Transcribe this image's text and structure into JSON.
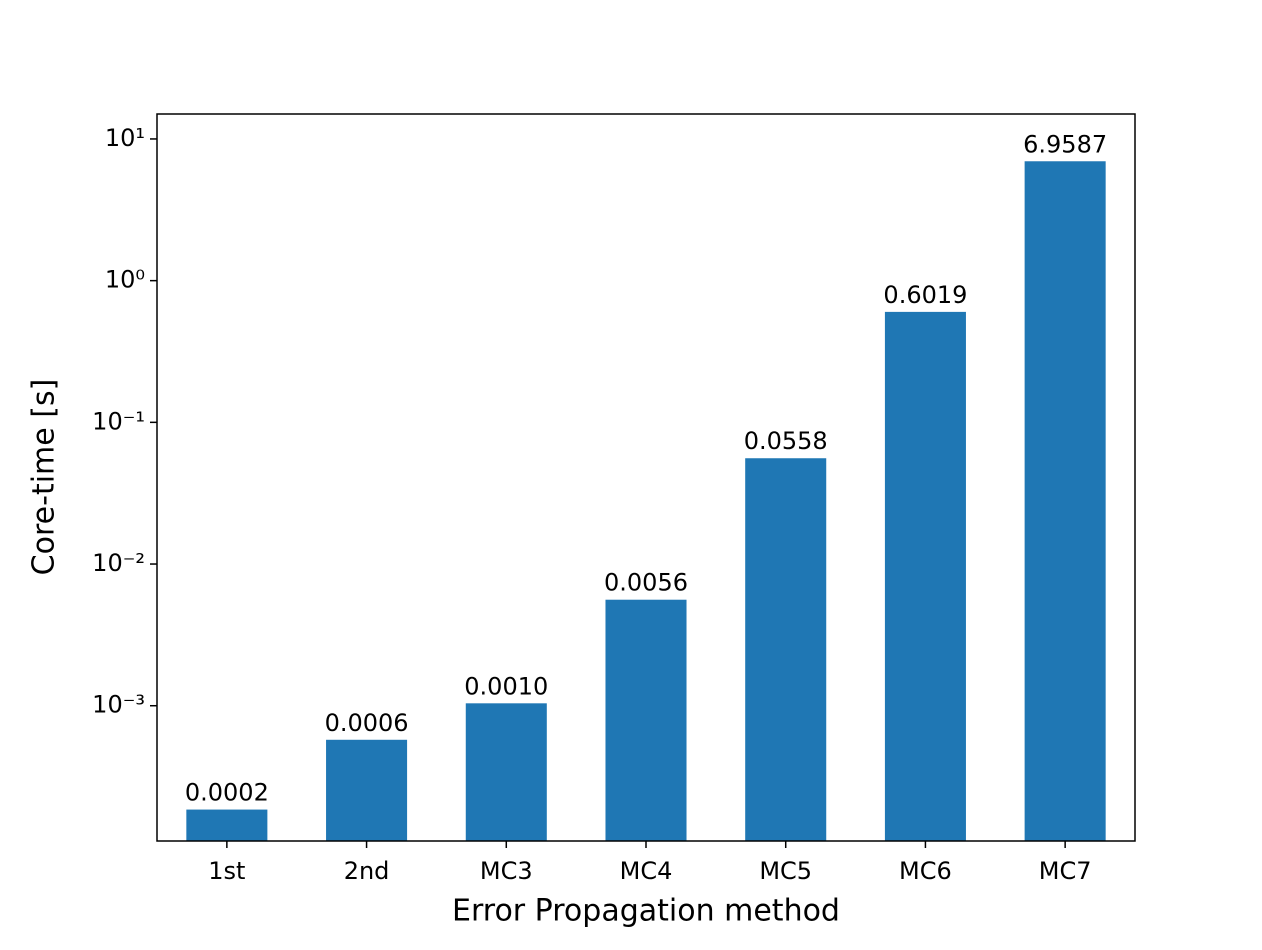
{
  "chart_data": {
    "type": "bar",
    "xlabel": "Error Propagation method",
    "ylabel": "Core-time [s]",
    "categories": [
      "1st",
      "2nd",
      "MC3",
      "MC4",
      "MC5",
      "MC6",
      "MC7"
    ],
    "values": [
      0.000185,
      0.000575,
      0.00104,
      0.0056,
      0.0558,
      0.6019,
      6.9587
    ],
    "value_labels": [
      "0.0002",
      "0.0006",
      "0.0010",
      "0.0056",
      "0.0558",
      "0.6019",
      "6.9587"
    ],
    "color": "#1f77b4",
    "yscale": "log",
    "ylim": [
      0.000111,
      15
    ],
    "yticks": [
      {
        "value": 0.001,
        "label": "10⁻³"
      },
      {
        "value": 0.01,
        "label": "10⁻²"
      },
      {
        "value": 0.1,
        "label": "10⁻¹"
      },
      {
        "value": 1,
        "label": "10⁰"
      },
      {
        "value": 10,
        "label": "10¹"
      }
    ],
    "grid": false
  }
}
